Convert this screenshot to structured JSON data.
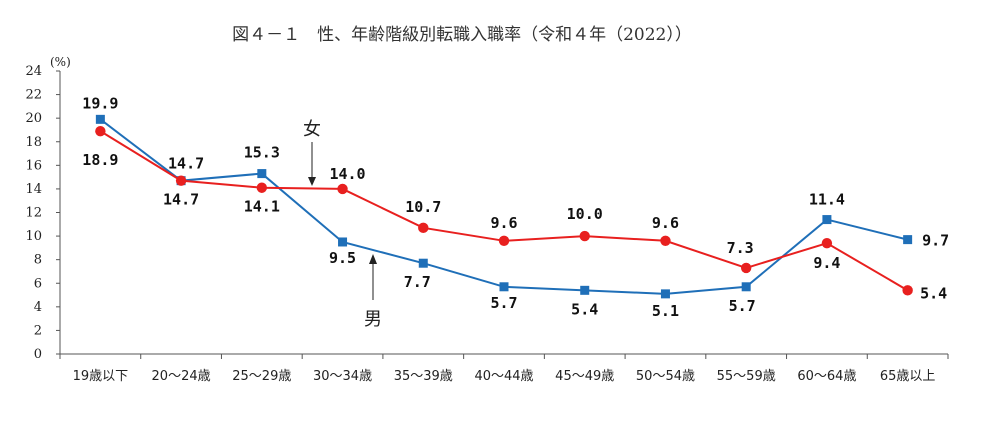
{
  "chart_data": {
    "type": "line",
    "title": "図４－１　性、年齢階級別転職入職率（令和４年（2022））",
    "ylabel": "(%)",
    "xlabel": "",
    "ylim": [
      0,
      24
    ],
    "yticks": [
      0,
      2,
      4,
      6,
      8,
      10,
      12,
      14,
      16,
      18,
      20,
      22,
      24
    ],
    "categories": [
      "19歳以下",
      "20～24歳",
      "25～29歳",
      "30～34歳",
      "35～39歳",
      "40～44歳",
      "45～49歳",
      "50～54歳",
      "55～59歳",
      "60～64歳",
      "65歳以上"
    ],
    "series": [
      {
        "name": "男",
        "color": "#1f6fb8",
        "marker": "square",
        "values": [
          19.9,
          14.7,
          15.3,
          9.5,
          7.7,
          5.7,
          5.4,
          5.1,
          5.7,
          11.4,
          9.7
        ],
        "labels": [
          "19.9",
          "14.7",
          "15.3",
          "9.5",
          "7.7",
          "5.7",
          "5.4",
          "5.1",
          "5.7",
          "11.4",
          "9.7"
        ]
      },
      {
        "name": "女",
        "color": "#e8201f",
        "marker": "circle",
        "values": [
          18.9,
          14.7,
          14.1,
          14.0,
          10.7,
          9.6,
          10.0,
          9.6,
          7.3,
          9.4,
          5.4
        ],
        "labels": [
          "18.9",
          "14.7",
          "14.1",
          "14.0",
          "10.7",
          "9.6",
          "10.0",
          "9.6",
          "7.3",
          "9.4",
          "5.4"
        ]
      }
    ],
    "annotations": [
      "女",
      "男"
    ],
    "grid": false
  }
}
